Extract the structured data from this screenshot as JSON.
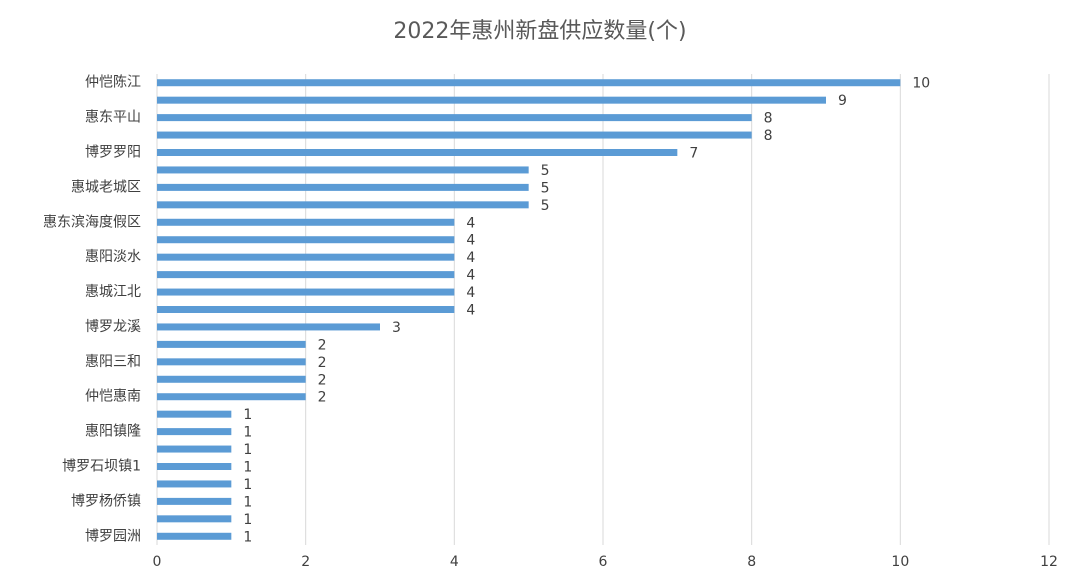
{
  "chart_data": {
    "type": "bar",
    "orientation": "horizontal",
    "title": "2022年惠州新盘供应数量(个)",
    "categories": [
      "仲恺陈江",
      null,
      "惠东平山",
      null,
      "博罗罗阳",
      null,
      "惠城老城区",
      null,
      "惠东滨海度假区",
      null,
      "惠阳淡水",
      null,
      "惠城江北",
      null,
      "博罗龙溪",
      null,
      "惠阳三和",
      null,
      "仲恺惠南",
      null,
      "惠阳镇隆",
      null,
      "博罗石坝镇1",
      null,
      "博罗杨侨镇",
      null,
      "博罗园洲"
    ],
    "values": [
      10,
      9,
      8,
      8,
      7,
      5,
      5,
      5,
      4,
      4,
      4,
      4,
      4,
      4,
      3,
      2,
      2,
      2,
      2,
      1,
      1,
      1,
      1,
      1,
      1,
      1,
      1
    ],
    "color": "#5b9bd5",
    "xlim": [
      0,
      12
    ],
    "xticks": [
      0,
      2,
      4,
      6,
      8,
      10,
      12
    ],
    "grid": true
  }
}
